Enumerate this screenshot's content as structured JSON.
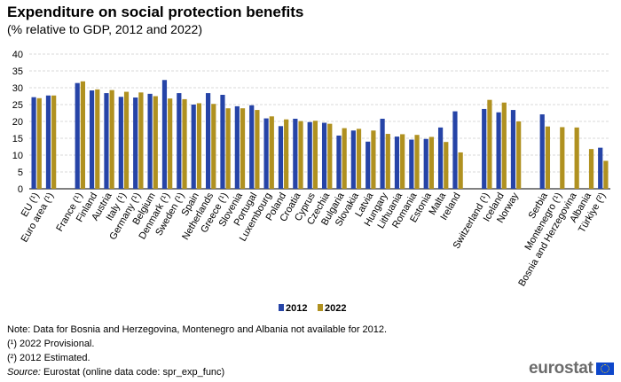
{
  "chart_data": {
    "type": "bar",
    "title": "Expenditure on social protection benefits",
    "subtitle": "(% relative to GDP, 2012 and 2022)",
    "ylim": [
      0,
      40
    ],
    "yticks": [
      0,
      5,
      10,
      15,
      20,
      25,
      30,
      35,
      40
    ],
    "grid": true,
    "legend_position": "bottom-center",
    "categories": [
      "EU (¹)",
      "Euro area (¹)",
      "France (¹)",
      "Finland",
      "Austria",
      "Italy (¹)",
      "Germany (¹)",
      "Belgium",
      "Denmark (¹)",
      "Sweden (¹)",
      "Spain",
      "Netherlands",
      "Greece (¹)",
      "Slovenia",
      "Portugal",
      "Luxembourg",
      "Poland",
      "Croatia",
      "Cyprus",
      "Czechia",
      "Bulgaria",
      "Slovakia",
      "Latvia",
      "Hungary",
      "Lithuania",
      "Romania",
      "Estonia",
      "Malta",
      "Ireland",
      "Switzerland (¹)",
      "Iceland",
      "Norway",
      "Serbia",
      "Montenegro (¹)",
      "Bosnia and Herzegovina",
      "Albania",
      "Türkiye (²)"
    ],
    "groups": [
      2,
      27,
      3,
      5
    ],
    "series": [
      {
        "name": "2012",
        "color": "#2644a7",
        "values": [
          27.2,
          27.7,
          31.4,
          29.2,
          28.4,
          27.3,
          27.1,
          28.2,
          32.3,
          28.4,
          25.0,
          28.4,
          27.9,
          24.5,
          24.8,
          20.9,
          18.6,
          20.8,
          19.8,
          19.6,
          15.8,
          17.3,
          14.0,
          20.8,
          15.5,
          14.6,
          14.8,
          18.2,
          23.0,
          23.7,
          22.7,
          23.4,
          22.1,
          null,
          null,
          null,
          12.2
        ]
      },
      {
        "name": "2022",
        "color": "#b09120",
        "values": [
          26.9,
          27.7,
          31.9,
          29.5,
          29.3,
          28.8,
          28.6,
          27.5,
          26.8,
          26.6,
          25.4,
          25.2,
          23.9,
          23.9,
          23.4,
          21.5,
          20.6,
          20.1,
          20.2,
          19.3,
          18.0,
          17.8,
          17.3,
          16.3,
          16.2,
          16.0,
          15.4,
          13.9,
          10.8,
          26.4,
          25.6,
          20.0,
          18.5,
          18.3,
          18.2,
          11.8,
          8.3
        ]
      }
    ]
  },
  "notes": {
    "note1": "Note: Data for Bosnia and Herzegovina, Montenegro and Albania not available for 2012.",
    "note2": "(¹) 2022 Provisional.",
    "note3": "(²) 2012 Estimated.",
    "source_label": "Source:",
    "source_text": " Eurostat (online data code: spr_exp_func)"
  },
  "logo_text": "eurostat"
}
